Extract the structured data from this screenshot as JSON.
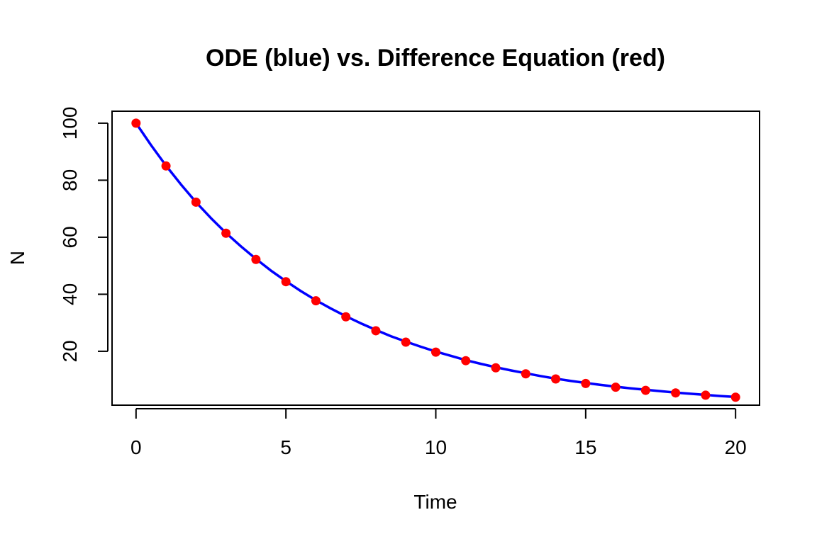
{
  "chart_data": {
    "type": "line",
    "title": "ODE (blue) vs. Difference Equation (red)",
    "xlabel": "Time",
    "ylabel": "N",
    "xlim": [
      -0.8,
      20.8
    ],
    "ylim": [
      1.1,
      104.2
    ],
    "x_ticks": [
      0,
      5,
      10,
      15,
      20
    ],
    "y_ticks": [
      20,
      40,
      60,
      80,
      100
    ],
    "grid": false,
    "series": [
      {
        "kind": "line",
        "color": "#0000ff",
        "x": [
          0,
          0.5,
          1,
          1.5,
          2,
          2.5,
          3,
          3.5,
          4,
          4.5,
          5,
          5.5,
          6,
          6.5,
          7,
          7.5,
          8,
          8.5,
          9,
          9.5,
          10,
          10.5,
          11,
          11.5,
          12,
          12.5,
          13,
          13.5,
          14,
          14.5,
          15,
          15.5,
          16,
          16.5,
          17,
          17.5,
          18,
          18.5,
          19,
          19.5,
          20
        ],
        "y": [
          100,
          92.3,
          85.1,
          78.5,
          72.3,
          66.7,
          61.5,
          56.8,
          52.4,
          48.3,
          44.6,
          41.1,
          37.9,
          35.0,
          32.3,
          29.8,
          27.5,
          25.3,
          23.4,
          21.6,
          19.9,
          18.4,
          16.9,
          15.6,
          14.4,
          13.3,
          12.3,
          11.3,
          10.4,
          9.6,
          8.9,
          8.2,
          7.6,
          7.0,
          6.5,
          6.0,
          5.5,
          5.1,
          4.7,
          4.3,
          4.0
        ]
      },
      {
        "kind": "scatter",
        "color": "#ff0000",
        "x": [
          0,
          1,
          2,
          3,
          4,
          5,
          6,
          7,
          8,
          9,
          10,
          11,
          12,
          13,
          14,
          15,
          16,
          17,
          18,
          19,
          20
        ],
        "y": [
          100,
          85,
          72.3,
          61.4,
          52.2,
          44.4,
          37.7,
          32.1,
          27.2,
          23.2,
          19.7,
          16.7,
          14.2,
          12.1,
          10.3,
          8.7,
          7.4,
          6.3,
          5.4,
          4.6,
          3.9
        ]
      }
    ]
  }
}
